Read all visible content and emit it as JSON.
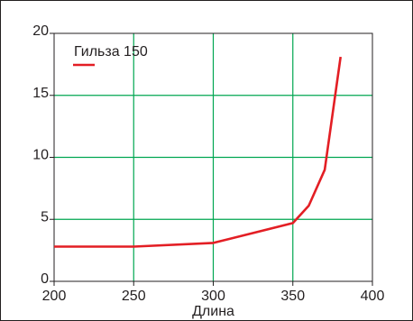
{
  "chart_data": {
    "type": "line",
    "title": "",
    "xlabel": "Длина",
    "ylabel": "",
    "xlim": [
      200,
      400
    ],
    "ylim": [
      0,
      20
    ],
    "x_ticks": [
      200,
      250,
      300,
      350,
      400
    ],
    "y_ticks": [
      0,
      5,
      10,
      15,
      20
    ],
    "grid": true,
    "legend_position": "top-left",
    "colors": {
      "grid": "#00a651",
      "series": "#e31e24",
      "axes": "#231f20"
    },
    "series": [
      {
        "name": "Гильза 150",
        "x": [
          200,
          250,
          300,
          350,
          360,
          370,
          380
        ],
        "y": [
          2.8,
          2.8,
          3.1,
          4.7,
          6.1,
          9.0,
          18.1
        ]
      }
    ]
  }
}
